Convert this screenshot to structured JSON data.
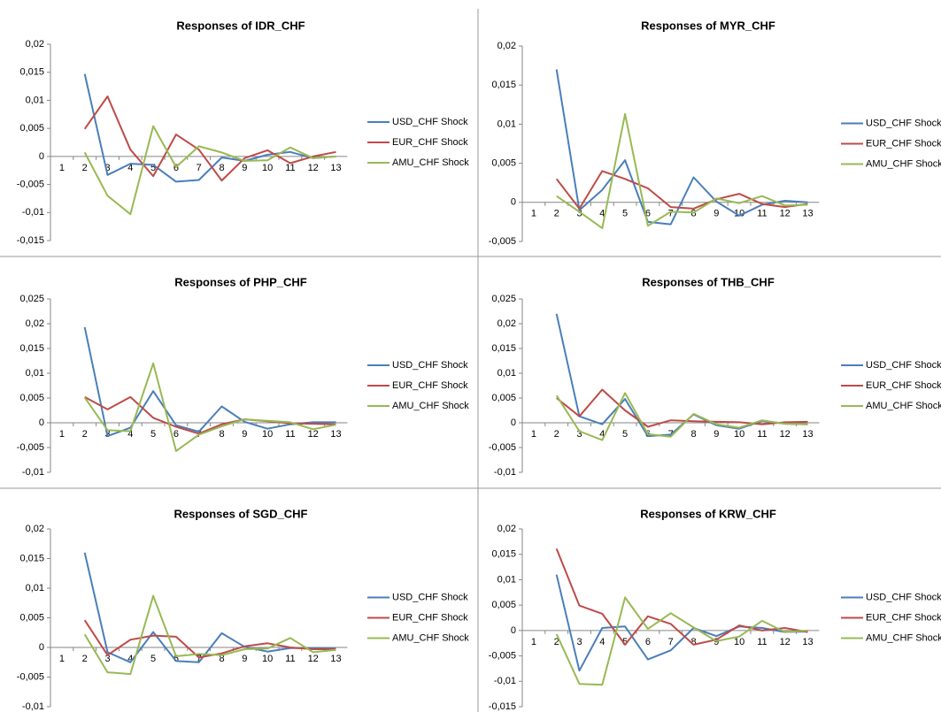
{
  "chart_data": [
    {
      "type": "line",
      "title": "Responses of IDR_CHF",
      "categories": [
        "1",
        "2",
        "3",
        "4",
        "5",
        "6",
        "7",
        "8",
        "9",
        "10",
        "11",
        "12",
        "13"
      ],
      "series": [
        {
          "name": "USD_CHF Shock",
          "color": "#4a7ebb",
          "values": [
            null,
            0.0147,
            -0.0033,
            -0.0013,
            -0.0015,
            -0.0045,
            -0.0042,
            -0.0002,
            -0.0008,
            0.0003,
            0.0008,
            -0.0003,
            0.0
          ]
        },
        {
          "name": "EUR_CHF Shock",
          "color": "#be4b48",
          "values": [
            null,
            0.0049,
            0.0107,
            0.0012,
            -0.0035,
            0.0039,
            0.0012,
            -0.0043,
            -0.0003,
            0.0011,
            -0.0012,
            0.0,
            0.0008
          ]
        },
        {
          "name": "AMU_CHF Shock",
          "color": "#98b954",
          "values": [
            null,
            0.0007,
            -0.007,
            -0.0103,
            0.0054,
            -0.0019,
            0.0018,
            0.0007,
            -0.0008,
            -0.0007,
            0.0016,
            -0.0003,
            0.0
          ]
        }
      ],
      "ylim": [
        -0.015,
        0.02
      ],
      "yticks": [
        {
          "value": -0.015,
          "label": "-0,015"
        },
        {
          "value": -0.01,
          "label": "-0,01"
        },
        {
          "value": -0.005,
          "label": "-0,005"
        },
        0,
        {
          "value": 0.005,
          "label": "0,005"
        },
        {
          "value": 0.01,
          "label": "0,01"
        },
        {
          "value": 0.015,
          "label": "0,015"
        },
        {
          "value": 0.02,
          "label": "0,02"
        }
      ],
      "grid": false,
      "legend": "right"
    },
    {
      "type": "line",
      "title": "Responses of MYR_CHF",
      "categories": [
        "1",
        "2",
        "3",
        "4",
        "5",
        "6",
        "7",
        "8",
        "9",
        "10",
        "11",
        "12",
        "13"
      ],
      "series": [
        {
          "name": "USD_CHF Shock",
          "color": "#4a7ebb",
          "values": [
            null,
            0.017,
            -0.001,
            0.0016,
            0.0054,
            -0.0025,
            -0.0028,
            0.0032,
            0.0001,
            -0.0017,
            -0.0003,
            0.0002,
            0.0
          ]
        },
        {
          "name": "EUR_CHF Shock",
          "color": "#be4b48",
          "values": [
            null,
            0.003,
            -0.0008,
            0.004,
            0.003,
            0.0018,
            -0.0006,
            -0.0008,
            0.0004,
            0.0011,
            -0.0002,
            -0.0006,
            -0.0002
          ]
        },
        {
          "name": "AMU_CHF Shock",
          "color": "#98b954",
          "values": [
            null,
            0.0008,
            -0.0012,
            -0.0033,
            0.0113,
            -0.003,
            -0.0012,
            -0.0013,
            0.0005,
            -0.0001,
            0.0008,
            -0.0004,
            -0.0003
          ]
        }
      ],
      "ylim": [
        -0.005,
        0.02
      ],
      "yticks": [
        {
          "value": -0.005,
          "label": "-0,005"
        },
        0,
        {
          "value": 0.005,
          "label": "0,005"
        },
        {
          "value": 0.01,
          "label": "0,01"
        },
        {
          "value": 0.015,
          "label": "0,015"
        },
        {
          "value": 0.02,
          "label": "0,02"
        }
      ],
      "grid": false,
      "legend": "right"
    },
    {
      "type": "line",
      "title": "Responses of PHP_CHF",
      "categories": [
        "1",
        "2",
        "3",
        "4",
        "5",
        "6",
        "7",
        "8",
        "9",
        "10",
        "11",
        "12",
        "13"
      ],
      "series": [
        {
          "name": "USD_CHF Shock",
          "color": "#4a7ebb",
          "values": [
            null,
            0.0193,
            -0.0027,
            -0.001,
            0.0064,
            -0.0005,
            -0.0018,
            0.0033,
            0.0002,
            -0.0012,
            -0.0003,
            0.0001,
            0.0001
          ]
        },
        {
          "name": "EUR_CHF Shock",
          "color": "#be4b48",
          "values": [
            null,
            0.0052,
            0.0027,
            0.0052,
            0.001,
            -0.0008,
            -0.0022,
            -0.0003,
            0.0007,
            0.0003,
            -0.0001,
            -0.0002,
            -0.0003
          ]
        },
        {
          "name": "AMU_CHF Shock",
          "color": "#98b954",
          "values": [
            null,
            0.0051,
            -0.0015,
            -0.0017,
            0.012,
            -0.0057,
            -0.0024,
            -0.0007,
            0.0007,
            0.0004,
            0.0001,
            -0.0013,
            -0.0004
          ]
        }
      ],
      "ylim": [
        -0.01,
        0.025
      ],
      "yticks": [
        {
          "value": -0.01,
          "label": "-0,01"
        },
        {
          "value": -0.005,
          "label": "-0,005"
        },
        0,
        {
          "value": 0.005,
          "label": "0,005"
        },
        {
          "value": 0.01,
          "label": "0,01"
        },
        {
          "value": 0.015,
          "label": "0,015"
        },
        {
          "value": 0.02,
          "label": "0,02"
        },
        {
          "value": 0.025,
          "label": "0,025"
        }
      ],
      "grid": false,
      "legend": "right"
    },
    {
      "type": "line",
      "title": "Responses of THB_CHF",
      "categories": [
        "1",
        "2",
        "3",
        "4",
        "5",
        "6",
        "7",
        "8",
        "9",
        "10",
        "11",
        "12",
        "13"
      ],
      "series": [
        {
          "name": "USD_CHF Shock",
          "color": "#4a7ebb",
          "values": [
            null,
            0.022,
            0.0013,
            -0.0003,
            0.0048,
            -0.0027,
            -0.0024,
            0.0017,
            -0.0005,
            -0.0012,
            0.0004,
            -0.0002,
            -0.0003
          ]
        },
        {
          "name": "EUR_CHF Shock",
          "color": "#be4b48",
          "values": [
            null,
            0.005,
            0.0013,
            0.0067,
            0.0025,
            -0.0008,
            0.0005,
            0.0003,
            0.0002,
            0.0001,
            -0.0003,
            0.0001,
            0.0002
          ]
        },
        {
          "name": "AMU_CHF Shock",
          "color": "#98b954",
          "values": [
            null,
            0.0055,
            -0.0017,
            -0.0035,
            0.006,
            -0.0023,
            -0.0028,
            0.0018,
            -0.0003,
            -0.001,
            0.0005,
            -0.0002,
            -0.0003
          ]
        }
      ],
      "ylim": [
        -0.01,
        0.025
      ],
      "yticks": [
        {
          "value": -0.01,
          "label": "-0,01"
        },
        {
          "value": -0.005,
          "label": "-0,005"
        },
        0,
        {
          "value": 0.005,
          "label": "0,005"
        },
        {
          "value": 0.01,
          "label": "0,01"
        },
        {
          "value": 0.015,
          "label": "0,015"
        },
        {
          "value": 0.02,
          "label": "0,02"
        },
        {
          "value": 0.025,
          "label": "0,025"
        }
      ],
      "grid": false,
      "legend": "right"
    },
    {
      "type": "line",
      "title": "Responses of SGD_CHF",
      "categories": [
        "1",
        "2",
        "3",
        "4",
        "5",
        "6",
        "7",
        "8",
        "9",
        "10",
        "11",
        "12",
        "13"
      ],
      "series": [
        {
          "name": "USD_CHF Shock",
          "color": "#4a7ebb",
          "values": [
            null,
            0.016,
            -0.0008,
            -0.0025,
            0.0026,
            -0.0023,
            -0.0025,
            0.0024,
            0.0001,
            -0.0007,
            -0.0001,
            -0.0001,
            -0.0002
          ]
        },
        {
          "name": "EUR_CHF Shock",
          "color": "#be4b48",
          "values": [
            null,
            0.0046,
            -0.0013,
            0.0013,
            0.002,
            0.0018,
            -0.0017,
            -0.001,
            0.0002,
            0.0007,
            0.0,
            -0.0003,
            -0.0003
          ]
        },
        {
          "name": "AMU_CHF Shock",
          "color": "#98b954",
          "values": [
            null,
            0.0022,
            -0.0042,
            -0.0045,
            0.0087,
            -0.0015,
            -0.0011,
            -0.0013,
            -0.0003,
            -0.0002,
            0.0016,
            -0.0008,
            -0.0004
          ]
        }
      ],
      "ylim": [
        -0.01,
        0.02
      ],
      "yticks": [
        {
          "value": -0.01,
          "label": "-0,01"
        },
        {
          "value": -0.005,
          "label": "-0,005"
        },
        0,
        {
          "value": 0.005,
          "label": "0,005"
        },
        {
          "value": 0.01,
          "label": "0,01"
        },
        {
          "value": 0.015,
          "label": "0,015"
        },
        {
          "value": 0.02,
          "label": "0,02"
        }
      ],
      "grid": false,
      "legend": "right"
    },
    {
      "type": "line",
      "title": "Responses of KRW_CHF",
      "categories": [
        "1",
        "2",
        "3",
        "4",
        "5",
        "6",
        "7",
        "8",
        "9",
        "10",
        "11",
        "12",
        "13"
      ],
      "series": [
        {
          "name": "USD_CHF Shock",
          "color": "#4a7ebb",
          "values": [
            null,
            0.011,
            -0.0079,
            0.0005,
            0.0008,
            -0.0057,
            -0.0039,
            0.0005,
            -0.0011,
            0.0008,
            0.0005,
            -0.0003,
            -0.0002
          ]
        },
        {
          "name": "EUR_CHF Shock",
          "color": "#be4b48",
          "values": [
            null,
            0.0161,
            0.0049,
            0.0033,
            -0.0028,
            0.0028,
            0.0013,
            -0.0028,
            -0.0018,
            0.001,
            0.0,
            0.0005,
            -0.0003
          ]
        },
        {
          "name": "AMU_CHF Shock",
          "color": "#98b954",
          "values": [
            null,
            -0.0007,
            -0.0105,
            -0.0107,
            0.0065,
            0.0003,
            0.0034,
            0.0006,
            -0.0021,
            -0.0012,
            0.0019,
            -0.0003,
            0.0
          ]
        }
      ],
      "ylim": [
        -0.015,
        0.02
      ],
      "yticks": [
        {
          "value": -0.015,
          "label": "-0,015"
        },
        {
          "value": -0.01,
          "label": "-0,01"
        },
        {
          "value": -0.005,
          "label": "-0,005"
        },
        0,
        {
          "value": 0.005,
          "label": "0,005"
        },
        {
          "value": 0.01,
          "label": "0,01"
        },
        {
          "value": 0.015,
          "label": "0,015"
        },
        {
          "value": 0.02,
          "label": "0,02"
        }
      ],
      "grid": false,
      "legend": "right"
    }
  ]
}
